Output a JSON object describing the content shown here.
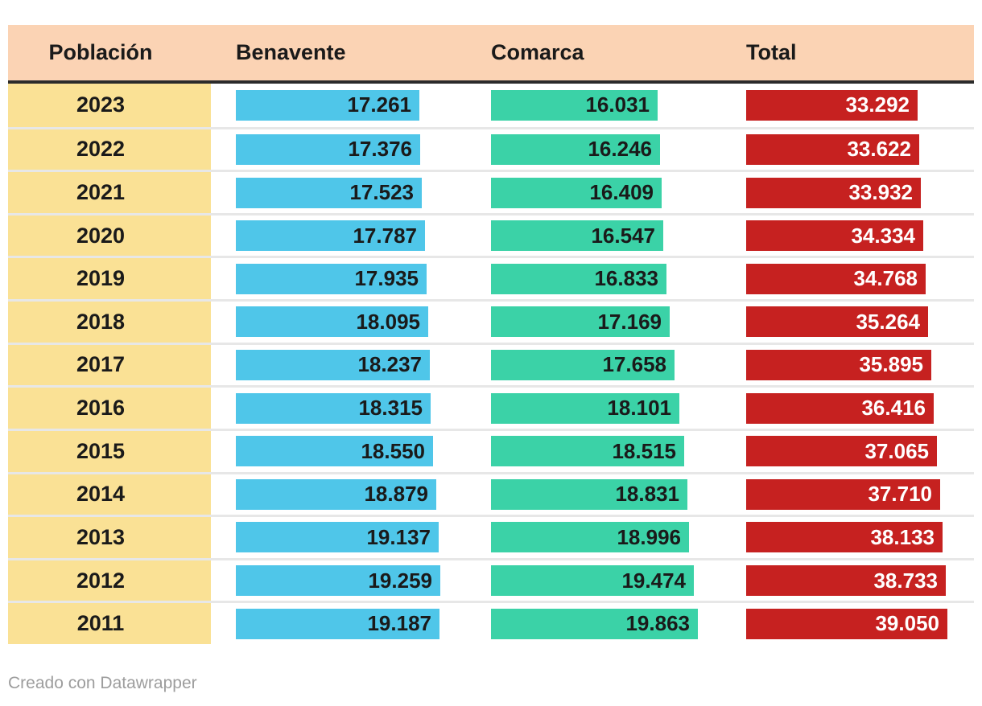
{
  "footer": {
    "credit": "Creado con Datawrapper"
  },
  "colors": {
    "header_bg": "#fbd3b4",
    "year_col_bg": "#fae195",
    "header_divider": "#2b2b2b",
    "row_separator": "#e7e7e7",
    "text_dark": "#1a1a1a",
    "footer_text": "#9d9d9d",
    "benavente_bar": "#4fc6e9",
    "comarca_bar": "#3bd2a7",
    "total_bar": "#c62120"
  },
  "chart_data": {
    "type": "table",
    "title": "",
    "row_header_label": "Población",
    "categories": [
      "2023",
      "2022",
      "2021",
      "2020",
      "2019",
      "2018",
      "2017",
      "2016",
      "2015",
      "2014",
      "2013",
      "2012",
      "2011"
    ],
    "series": [
      {
        "name": "Benavente",
        "color": "#4fc6e9",
        "label_color": "#1a1a1a",
        "values": [
          17261,
          17376,
          17523,
          17787,
          17935,
          18095,
          18237,
          18315,
          18550,
          18879,
          19137,
          19259,
          19187
        ],
        "labels": [
          "17.261",
          "17.376",
          "17.523",
          "17.787",
          "17.935",
          "18.095",
          "18.237",
          "18.315",
          "18.550",
          "18.879",
          "19.137",
          "19.259",
          "19.187"
        ],
        "scale": [
          0,
          19259
        ]
      },
      {
        "name": "Comarca",
        "color": "#3bd2a7",
        "label_color": "#1a1a1a",
        "values": [
          16031,
          16246,
          16409,
          16547,
          16833,
          17169,
          17658,
          18101,
          18515,
          18831,
          18996,
          19474,
          19863
        ],
        "labels": [
          "16.031",
          "16.246",
          "16.409",
          "16.547",
          "16.833",
          "17.169",
          "17.658",
          "18.101",
          "18.515",
          "18.831",
          "18.996",
          "19.474",
          "19.863"
        ],
        "scale": [
          0,
          19863
        ]
      },
      {
        "name": "Total",
        "color": "#c62120",
        "label_color": "#ffffff",
        "values": [
          33292,
          33622,
          33932,
          34334,
          34768,
          35264,
          35895,
          36416,
          37065,
          37710,
          38133,
          38733,
          39050
        ],
        "labels": [
          "33.292",
          "33.622",
          "33.932",
          "34.334",
          "34.768",
          "35.264",
          "35.895",
          "36.416",
          "37.065",
          "37.710",
          "38.133",
          "38.733",
          "39.050"
        ],
        "scale": [
          0,
          39050
        ]
      }
    ],
    "legend": "none",
    "grid": "off"
  }
}
